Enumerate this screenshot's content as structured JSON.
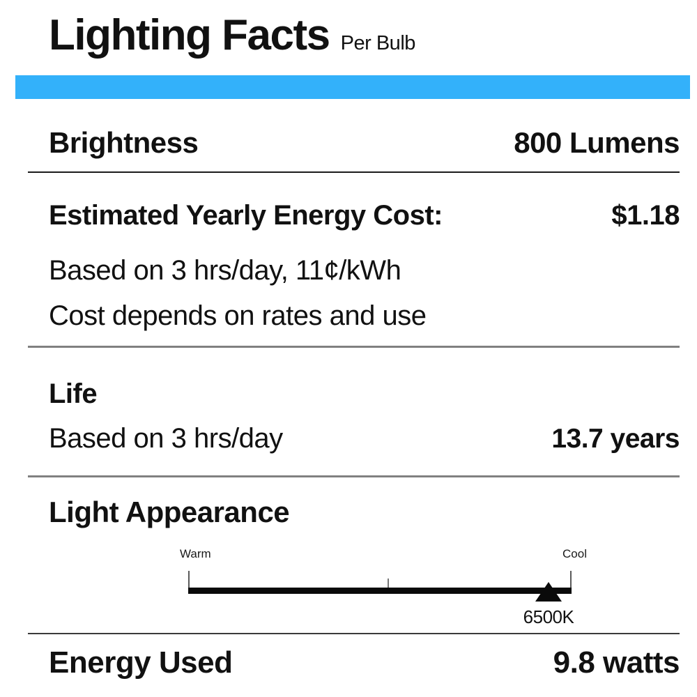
{
  "header": {
    "title": "Lighting Facts",
    "subtitle": "Per Bulb"
  },
  "colors": {
    "accent_blue": "#33B1FA",
    "divider_dark": "#1a1a1a",
    "divider_gray": "#808080"
  },
  "brightness": {
    "label": "Brightness",
    "value": "800 Lumens"
  },
  "energy_cost": {
    "label": "Estimated Yearly Energy Cost:",
    "value": "$1.18",
    "basis": "Based on 3 hrs/day, 11¢/kWh",
    "note": "Cost depends on rates and use"
  },
  "life": {
    "label": "Life",
    "basis": "Based on 3 hrs/day",
    "value": "13.7 years"
  },
  "light_appearance": {
    "label": "Light Appearance",
    "warm_label": "Warm",
    "cool_label": "Cool",
    "marker_value": "6500K",
    "marker_position_pct": 94
  },
  "energy_used": {
    "label": "Energy Used",
    "value": "9.8 watts"
  }
}
